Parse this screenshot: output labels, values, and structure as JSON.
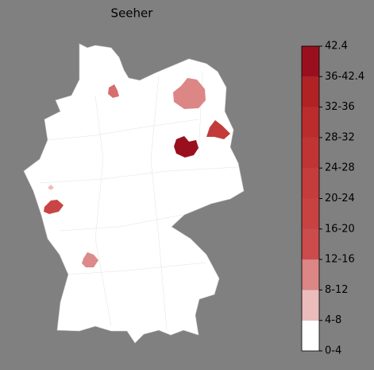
{
  "chart_data": {
    "type": "choropleth",
    "title": "Seeher",
    "regions": [
      {
        "value": 12,
        "color": "#d66e6e"
      },
      {
        "value": 10,
        "color": "#dc8686"
      },
      {
        "value": 40,
        "color": "#9a0f1e"
      },
      {
        "value": 26,
        "color": "#c33a3a"
      },
      {
        "value": 22,
        "color": "#c94444"
      },
      {
        "value": 6,
        "color": "#ebbcbc"
      },
      {
        "value": 10,
        "color": "#dc8a8a"
      }
    ],
    "colorbar": {
      "max_label": 42.4,
      "classes": [
        {
          "label": "0-4",
          "color": "#ffffff"
        },
        {
          "label": "4-8",
          "color": "#ebbcbc"
        },
        {
          "label": "8-12",
          "color": "#dc8686"
        },
        {
          "label": "12-16",
          "color": "#cc4b4b"
        },
        {
          "label": "16-20",
          "color": "#c84242"
        },
        {
          "label": "20-24",
          "color": "#c53c3c"
        },
        {
          "label": "24-28",
          "color": "#c13434"
        },
        {
          "label": "28-32",
          "color": "#bb2c2c"
        },
        {
          "label": "32-36",
          "color": "#b02224"
        },
        {
          "label": "36-42.4",
          "color": "#9a0f1e"
        }
      ]
    }
  }
}
